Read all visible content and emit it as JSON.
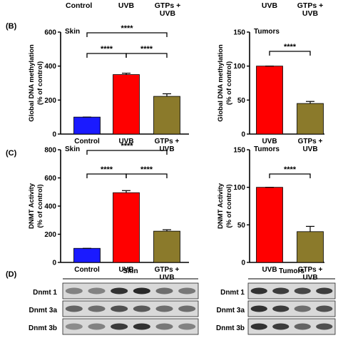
{
  "colors": {
    "control": "#1a1aff",
    "uvb": "#ff0000",
    "gtps": "#8b7a2b",
    "axis": "#000000"
  },
  "header": {
    "left_labels": [
      "Control",
      "UVB",
      "GTPs +",
      "UVB"
    ],
    "right_labels": [
      "UVB",
      "GTPs +",
      "UVB"
    ]
  },
  "panels": {
    "b": {
      "letter": "(B)"
    },
    "c": {
      "letter": "(C)"
    },
    "d": {
      "letter": "(D)"
    }
  },
  "chart_data": [
    {
      "id": "b-skin",
      "type": "bar",
      "panel_title": "Skin",
      "ylabel": [
        "Global DNA methylation",
        "(% of control)"
      ],
      "categories": [
        "Control",
        "UVB",
        "GTPs + UVB"
      ],
      "category_labels": [
        [
          "Control"
        ],
        [
          "UVB"
        ],
        [
          "GTPs +",
          "UVB"
        ]
      ],
      "values": [
        100,
        350,
        222
      ],
      "errors": [
        0,
        8,
        15
      ],
      "colors": [
        "#1a1aff",
        "#ff0000",
        "#8b7a2b"
      ],
      "ylim": [
        0,
        600
      ],
      "yticks": [
        0,
        200,
        400,
        600
      ],
      "significance": [
        {
          "from": 0,
          "to": 1,
          "label": "****"
        },
        {
          "from": 1,
          "to": 2,
          "label": "****"
        },
        {
          "from": 0,
          "to": 2,
          "label": "****"
        }
      ]
    },
    {
      "id": "b-tumors",
      "type": "bar",
      "panel_title": "Tumors",
      "ylabel": [
        "Global DNA methylation",
        "(% of control)"
      ],
      "categories": [
        "UVB",
        "GTPs + UVB"
      ],
      "category_labels": [
        [
          "UVB"
        ],
        [
          "GTPs +",
          "UVB"
        ]
      ],
      "values": [
        100,
        45
      ],
      "errors": [
        0,
        3
      ],
      "colors": [
        "#ff0000",
        "#8b7a2b"
      ],
      "ylim": [
        0,
        150
      ],
      "yticks": [
        0,
        50,
        100,
        150
      ],
      "significance": [
        {
          "from": 0,
          "to": 1,
          "label": "****"
        }
      ]
    },
    {
      "id": "c-skin",
      "type": "bar",
      "panel_title": "Skin",
      "ylabel": [
        "DNMT Activity",
        "(% of control)"
      ],
      "categories": [
        "Control",
        "UVB",
        "GTPs + UVB"
      ],
      "category_labels": [
        [
          "Control"
        ],
        [
          "UVB"
        ],
        [
          "GTPs +",
          "UVB"
        ]
      ],
      "values": [
        100,
        495,
        222
      ],
      "errors": [
        0,
        15,
        10
      ],
      "colors": [
        "#1a1aff",
        "#ff0000",
        "#8b7a2b"
      ],
      "ylim": [
        0,
        800
      ],
      "yticks": [
        0,
        200,
        400,
        600,
        800
      ],
      "significance": [
        {
          "from": 0,
          "to": 1,
          "label": "****"
        },
        {
          "from": 1,
          "to": 2,
          "label": "****"
        },
        {
          "from": 0,
          "to": 2,
          "label": "****"
        }
      ]
    },
    {
      "id": "c-tumors",
      "type": "bar",
      "panel_title": "Tumors",
      "ylabel": [
        "DNMT Activity",
        "(% of control)"
      ],
      "categories": [
        "UVB",
        "GTPs + UVB"
      ],
      "category_labels": [
        [
          "UVB"
        ],
        [
          "GTPs +",
          "UVB"
        ]
      ],
      "values": [
        100,
        41
      ],
      "errors": [
        0,
        7
      ],
      "colors": [
        "#ff0000",
        "#8b7a2b"
      ],
      "ylim": [
        0,
        150
      ],
      "yticks": [
        0,
        50,
        100,
        150
      ],
      "significance": [
        {
          "from": 0,
          "to": 1,
          "label": "****"
        }
      ]
    }
  ],
  "western_blot": {
    "skin": {
      "title": "Skin",
      "rows": [
        {
          "label": "Dnmt 1",
          "intensities": [
            0.45,
            0.45,
            0.85,
            0.9,
            0.55,
            0.5
          ]
        },
        {
          "label": "Dnmt 3a",
          "intensities": [
            0.6,
            0.55,
            0.7,
            0.65,
            0.55,
            0.55
          ]
        },
        {
          "label": "Dnmt 3b",
          "intensities": [
            0.4,
            0.45,
            0.8,
            0.85,
            0.5,
            0.45
          ]
        }
      ]
    },
    "tumors": {
      "title": "Tumors",
      "rows": [
        {
          "label": "Dnmt 1",
          "intensities": [
            0.85,
            0.8,
            0.75,
            0.8
          ]
        },
        {
          "label": "Dnmt 3a",
          "intensities": [
            0.85,
            0.8,
            0.55,
            0.7
          ]
        },
        {
          "label": "Dnmt 3b",
          "intensities": [
            0.85,
            0.8,
            0.6,
            0.7
          ]
        }
      ]
    }
  }
}
